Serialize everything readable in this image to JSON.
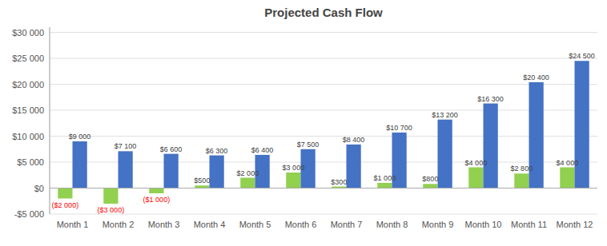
{
  "chart_data": {
    "type": "bar",
    "title": "Projected Cash Flow",
    "categories": [
      "Month 1",
      "Month 2",
      "Month 3",
      "Month 4",
      "Month 5",
      "Month 6",
      "Month 7",
      "Month 8",
      "Month 9",
      "Month 10",
      "Month 11",
      "Month 12"
    ],
    "series": [
      {
        "color": "#92d050",
        "values": [
          -2000,
          -3000,
          -1000,
          500,
          2000,
          3000,
          300,
          1000,
          800,
          4000,
          2800,
          4000
        ],
        "value_labels": [
          "($2 000)",
          "($3 000)",
          "($1 000)",
          "$500",
          "$2 000",
          "$3 000",
          "$300",
          "$1 000",
          "$800",
          "$4 000",
          "$2 800",
          "$4 000"
        ]
      },
      {
        "color": "#4472c4",
        "values": [
          9000,
          7100,
          6600,
          6300,
          6400,
          7500,
          8400,
          10700,
          13200,
          16300,
          20400,
          24500
        ],
        "value_labels": [
          "$9 000",
          "$7 100",
          "$6 600",
          "$6 300",
          "$6 400",
          "$7 500",
          "$8 400",
          "$10 700",
          "$13 200",
          "$16 300",
          "$20 400",
          "$24 500"
        ]
      }
    ],
    "ylim": [
      -5000,
      31000
    ],
    "yticks": [
      {
        "value": -5000,
        "label": "-$5 000"
      },
      {
        "value": 0,
        "label": "$0"
      },
      {
        "value": 5000,
        "label": "$5 000"
      },
      {
        "value": 10000,
        "label": "$10 000"
      },
      {
        "value": 15000,
        "label": "$15 000"
      },
      {
        "value": 20000,
        "label": "$20 000"
      },
      {
        "value": 25000,
        "label": "$25 000"
      },
      {
        "value": 30000,
        "label": "$30 000"
      }
    ],
    "grid": true,
    "data_labels": true
  }
}
